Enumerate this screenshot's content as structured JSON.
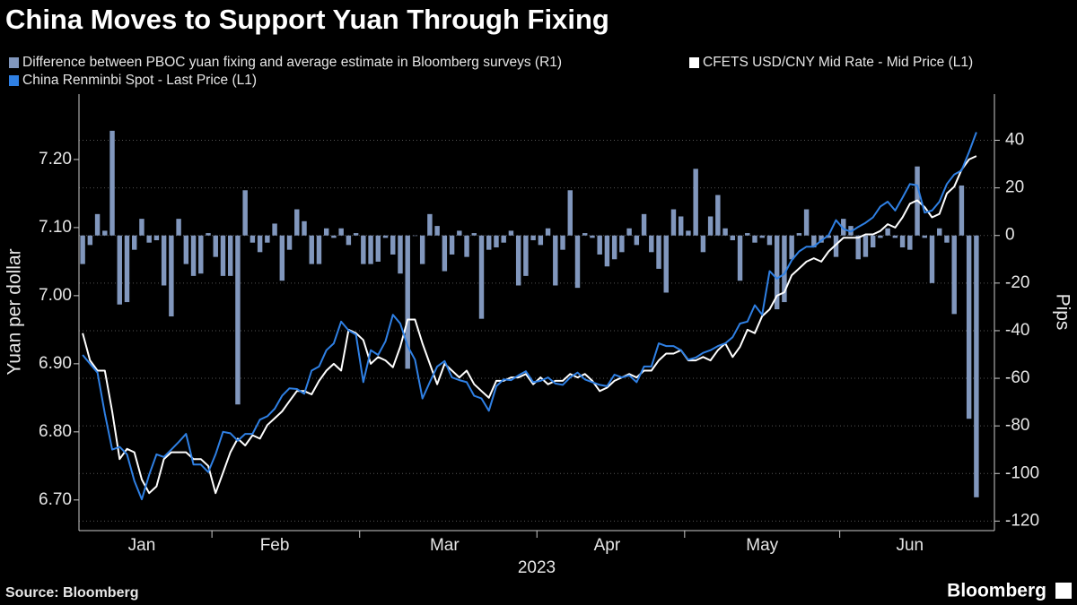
{
  "chart_data": {
    "type": "combo",
    "title": "China Moves to Support Yuan Through Fixing",
    "x_label": "2023",
    "y_label": "Yuan per dollar",
    "y2_label": "Pips",
    "source": "Source: Bloomberg",
    "brand": "Bloomberg",
    "categories": [
      null,
      null,
      null,
      null,
      null,
      null,
      null,
      null,
      "Jan",
      null,
      null,
      null,
      null,
      null,
      null,
      null,
      null,
      null,
      null,
      null,
      null,
      null,
      null,
      null,
      null,
      null,
      "Feb",
      null,
      null,
      null,
      null,
      null,
      null,
      null,
      null,
      null,
      null,
      null,
      null,
      null,
      null,
      null,
      null,
      null,
      null,
      null,
      null,
      null,
      null,
      "Mar",
      null,
      null,
      null,
      null,
      null,
      null,
      null,
      null,
      null,
      null,
      null,
      null,
      null,
      null,
      null,
      null,
      null,
      null,
      null,
      null,
      null,
      "Apr",
      null,
      null,
      null,
      null,
      null,
      null,
      null,
      null,
      null,
      null,
      null,
      null,
      null,
      null,
      null,
      null,
      null,
      null,
      null,
      null,
      "May",
      null,
      null,
      null,
      null,
      null,
      null,
      null,
      null,
      null,
      null,
      null,
      null,
      null,
      null,
      null,
      null,
      null,
      null,
      null,
      "Jun",
      null,
      null,
      null,
      null,
      null,
      null,
      null,
      null,
      null
    ],
    "xticks": [
      18,
      38,
      62,
      82,
      103
    ],
    "ylim": [
      6.655,
      7.296
    ],
    "yticks": [
      {
        "value": 6.7,
        "label": "6.70"
      },
      {
        "value": 6.8,
        "label": "6.80"
      },
      {
        "value": 6.9,
        "label": "6.90"
      },
      {
        "value": 7.0,
        "label": "7.00"
      },
      {
        "value": 7.1,
        "label": "7.10"
      },
      {
        "value": 7.2,
        "label": "7.20"
      }
    ],
    "y2lim": [
      -124,
      59.4
    ],
    "y2ticks": [
      -120,
      -100,
      -80,
      -60,
      -40,
      -20,
      0,
      20,
      40
    ],
    "grid": true,
    "series": [
      {
        "name": "Difference between PBOC yuan fixing and average estimate in Bloomberg surveys (R1)",
        "type": "bar",
        "axis": "y2",
        "color": "#8197bd",
        "values": [
          -12,
          -4,
          9,
          2,
          44,
          -29,
          -28,
          -6,
          7,
          -3,
          -2,
          -21,
          -34,
          7,
          -12,
          -17,
          -16,
          1,
          -9,
          -17,
          -17,
          -71,
          19,
          -3,
          -7,
          -3,
          5,
          -19,
          -6,
          11,
          6,
          -12,
          -12,
          3,
          -1,
          3,
          -4,
          1,
          -12,
          -12,
          -11,
          -1,
          -8,
          -16,
          -56,
          0,
          -12,
          9,
          4,
          -15,
          -8,
          2,
          -9,
          1,
          -35,
          -6,
          -5,
          -3,
          2,
          -21,
          -17,
          -2,
          -4,
          3,
          -21,
          -6,
          19,
          -22,
          1,
          -1,
          -8,
          -13,
          -10,
          -7,
          3,
          -4,
          9,
          -7,
          -14,
          -24,
          11,
          8,
          2,
          28,
          -7,
          8,
          17,
          3,
          -2,
          -19,
          1,
          -3,
          -1,
          -4,
          -31,
          -28,
          -10,
          1,
          11,
          -5,
          -3,
          -1,
          -9,
          7,
          4,
          -10,
          -9,
          -5,
          -1,
          3,
          -1,
          -5,
          -6,
          29,
          -1,
          -20,
          3,
          -3,
          -33,
          21,
          -77,
          -110
        ]
      },
      {
        "name": "CFETS USD/CNY Mid Rate - Mid Price (L1)",
        "type": "line",
        "color": "#ffffff",
        "values": [
          6.945,
          6.905,
          6.89,
          6.89,
          6.83,
          6.76,
          6.775,
          6.77,
          6.73,
          6.71,
          6.72,
          6.76,
          6.77,
          6.77,
          6.77,
          6.76,
          6.76,
          6.75,
          6.71,
          6.74,
          6.77,
          6.79,
          6.78,
          6.795,
          6.79,
          6.81,
          6.82,
          6.83,
          6.845,
          6.86,
          6.86,
          6.855,
          6.875,
          6.89,
          6.9,
          6.89,
          6.95,
          6.945,
          6.935,
          6.9,
          6.91,
          6.905,
          6.895,
          6.925,
          6.965,
          6.965,
          6.93,
          6.9,
          6.87,
          6.9,
          6.89,
          6.88,
          6.89,
          6.87,
          6.86,
          6.85,
          6.875,
          6.875,
          6.88,
          6.88,
          6.885,
          6.87,
          6.88,
          6.87,
          6.875,
          6.875,
          6.885,
          6.88,
          6.885,
          6.875,
          6.86,
          6.865,
          6.875,
          6.88,
          6.885,
          6.88,
          6.89,
          6.89,
          6.905,
          6.915,
          6.915,
          6.92,
          6.905,
          6.905,
          6.91,
          6.905,
          6.92,
          6.93,
          6.91,
          6.925,
          6.95,
          6.945,
          6.97,
          6.98,
          7.0,
          7.005,
          7.03,
          7.04,
          7.05,
          7.055,
          7.05,
          7.065,
          7.075,
          7.085,
          7.085,
          7.085,
          7.09,
          7.09,
          7.095,
          7.105,
          7.1,
          7.115,
          7.135,
          7.14,
          7.13,
          7.115,
          7.12,
          7.15,
          7.16,
          7.185,
          7.2,
          7.205
        ]
      },
      {
        "name": "China Renminbi Spot - Last Price (L1)",
        "type": "line",
        "color": "#2f80e4",
        "values": [
          6.913,
          6.9,
          6.887,
          6.827,
          6.774,
          6.778,
          6.767,
          6.728,
          6.701,
          6.737,
          6.767,
          6.763,
          6.774,
          6.785,
          6.797,
          6.752,
          6.752,
          6.741,
          6.767,
          6.8,
          6.798,
          6.787,
          6.797,
          6.797,
          6.818,
          6.823,
          6.834,
          6.853,
          6.864,
          6.863,
          6.856,
          6.89,
          6.896,
          6.92,
          6.93,
          6.962,
          6.949,
          6.943,
          6.873,
          6.92,
          6.913,
          6.933,
          6.972,
          6.959,
          6.926,
          6.906,
          6.849,
          6.873,
          6.896,
          6.904,
          6.88,
          6.876,
          6.873,
          6.853,
          6.849,
          6.831,
          6.867,
          6.877,
          6.876,
          6.883,
          6.889,
          6.873,
          6.875,
          6.88,
          6.871,
          6.869,
          6.88,
          6.887,
          6.877,
          6.873,
          6.869,
          6.867,
          6.884,
          6.88,
          6.883,
          6.873,
          6.896,
          6.896,
          6.93,
          6.926,
          6.926,
          6.92,
          6.906,
          6.909,
          6.916,
          6.92,
          6.926,
          6.93,
          6.939,
          6.959,
          6.962,
          6.986,
          6.972,
          7.036,
          7.025,
          7.032,
          7.052,
          7.065,
          7.072,
          7.072,
          7.081,
          7.089,
          7.111,
          7.098,
          7.094,
          7.101,
          7.107,
          7.115,
          7.131,
          7.138,
          7.125,
          7.144,
          7.164,
          7.162,
          7.122,
          7.125,
          7.138,
          7.164,
          7.178,
          7.184,
          7.211,
          7.24
        ]
      }
    ]
  }
}
